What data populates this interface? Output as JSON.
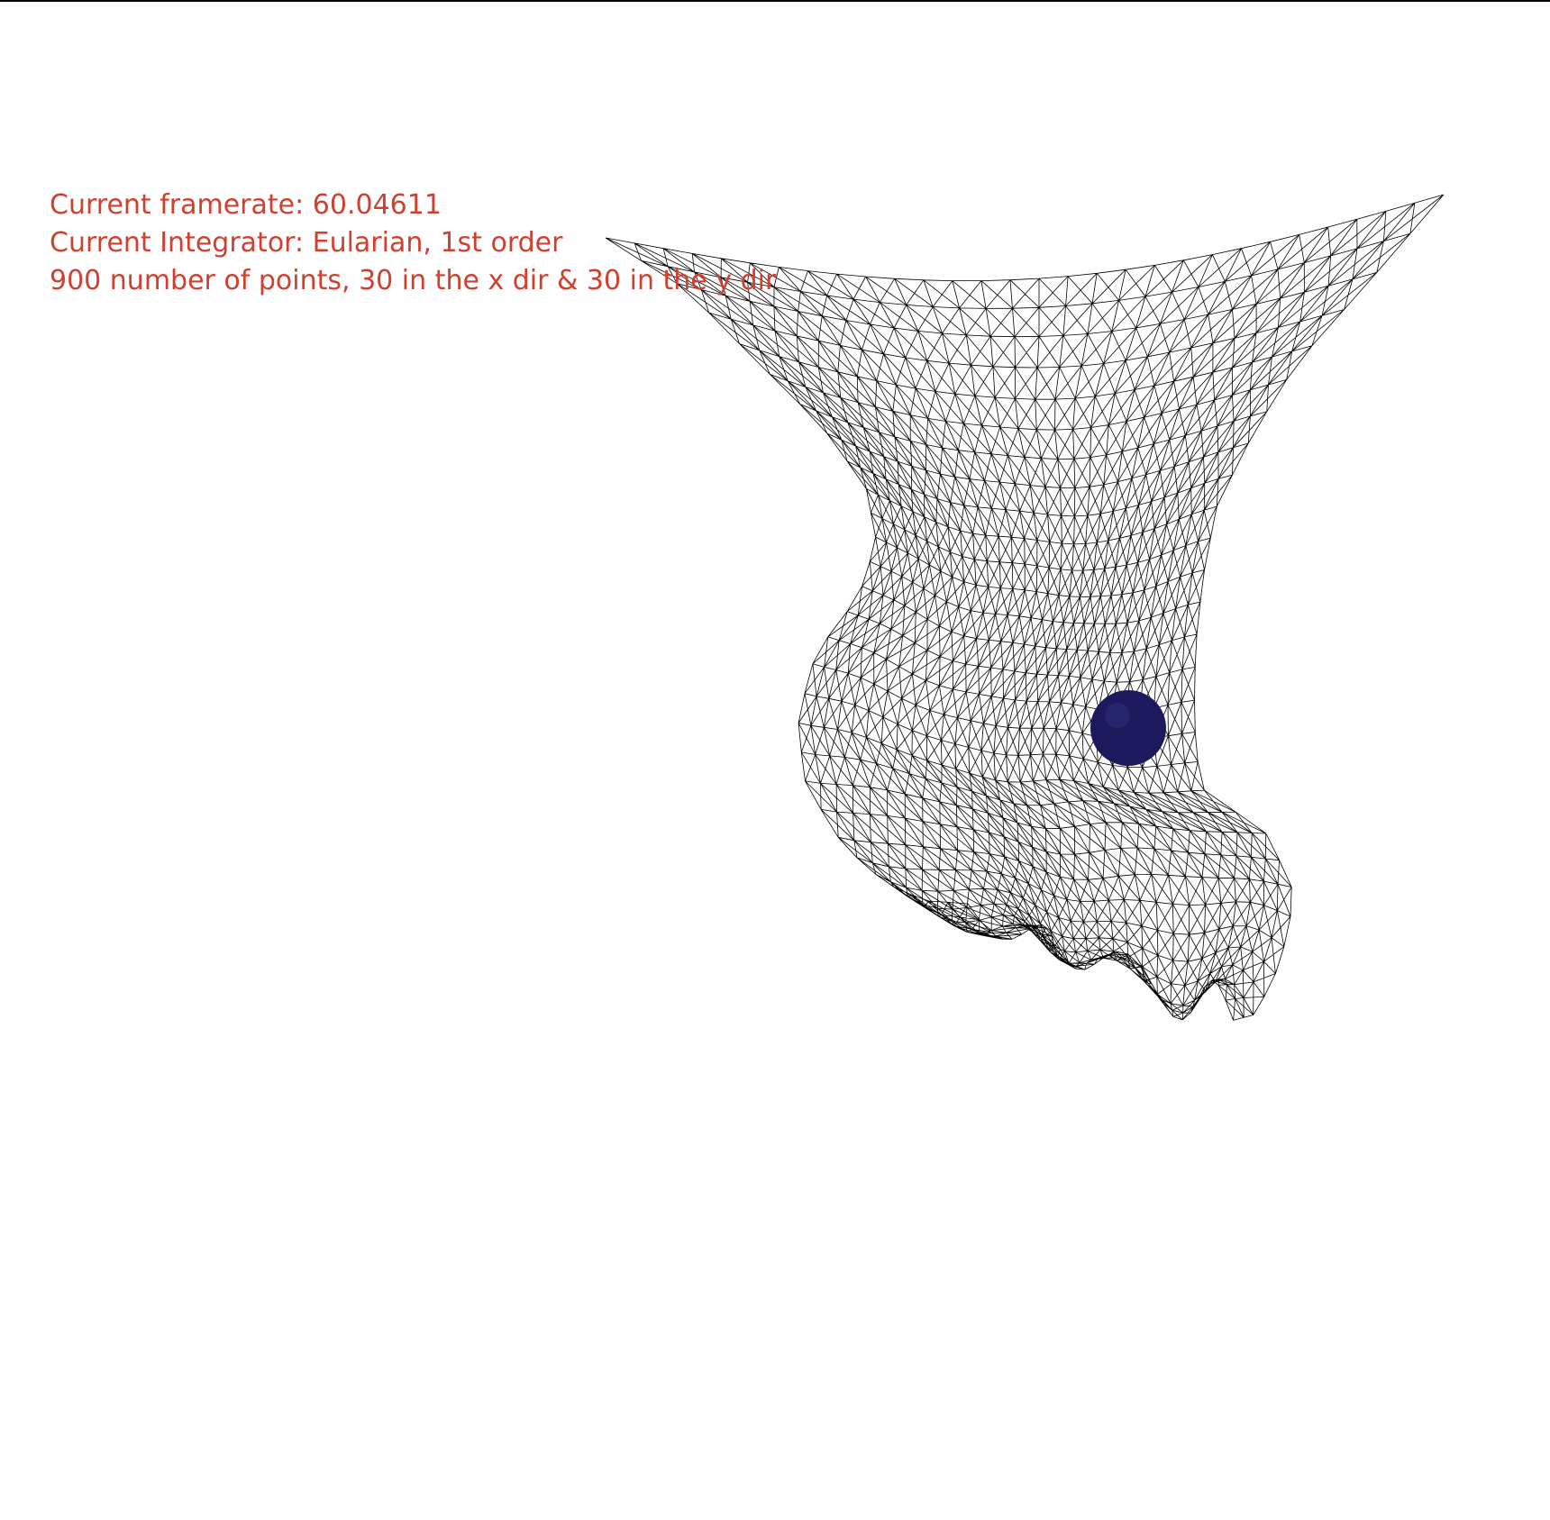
{
  "hud": {
    "framerate_label": "Current framerate:",
    "framerate_value": "60.04611",
    "integrator_line": "Current Integrator: Eularian, 1st order",
    "points_line": "900 number of points, 30 in the x dir & 30 in the y dir"
  },
  "simulation": {
    "total_points": 900,
    "grid_x": 30,
    "grid_y": 30
  },
  "colors": {
    "background": "#ffffff",
    "hud_text": "#d0402e",
    "mesh_stroke": "#000000",
    "sphere_fill": "#1c1a5c"
  }
}
